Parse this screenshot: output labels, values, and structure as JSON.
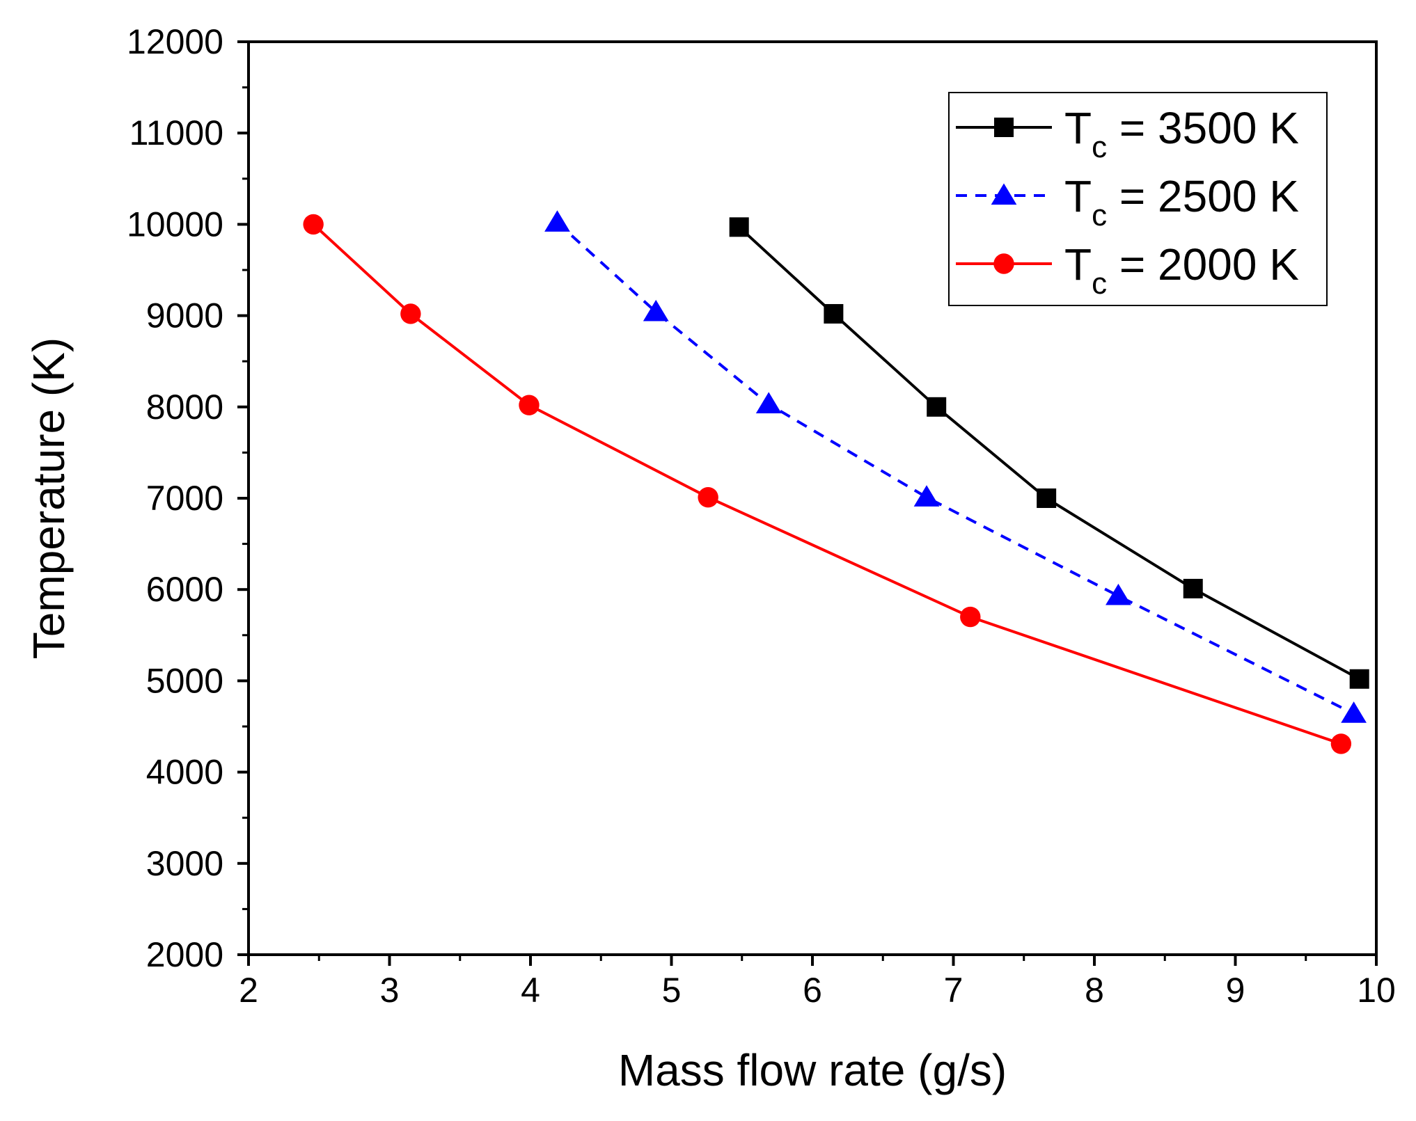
{
  "chart_data": {
    "type": "line",
    "title": "",
    "xlabel": "Mass flow rate (g/s)",
    "ylabel": "Temperature (K)",
    "xlim": [
      2,
      10
    ],
    "ylim": [
      2000,
      12000
    ],
    "x_ticks": [
      "2",
      "3",
      "4",
      "5",
      "6",
      "7",
      "8",
      "9",
      "10"
    ],
    "y_ticks": [
      "2000",
      "3000",
      "4000",
      "5000",
      "6000",
      "7000",
      "8000",
      "9000",
      "10000",
      "11000",
      "12000"
    ],
    "legend_position": "top-right",
    "series": [
      {
        "name": "Tc = 3500 K",
        "legend_main": "T",
        "legend_sub": "c",
        "legend_rest": " = 3500 K",
        "color": "#000000",
        "marker": "square",
        "line_style": "solid",
        "x": [
          5.48,
          6.15,
          6.88,
          7.66,
          8.7,
          9.88
        ],
        "y": [
          9970,
          9020,
          8000,
          7000,
          6010,
          5020
        ]
      },
      {
        "name": "Tc = 2500 K",
        "legend_main": "T",
        "legend_sub": "c",
        "legend_rest": " = 2500 K",
        "color": "#0000ff",
        "marker": "triangle",
        "line_style": "dashed",
        "x": [
          4.19,
          4.89,
          5.69,
          6.81,
          8.17,
          9.84
        ],
        "y": [
          10020,
          9040,
          8030,
          7010,
          5930,
          4640
        ]
      },
      {
        "name": "Tc = 2000 K",
        "legend_main": "T",
        "legend_sub": "c",
        "legend_rest": " = 2000 K",
        "color": "#ff0000",
        "marker": "circle",
        "line_style": "solid",
        "x": [
          2.46,
          3.15,
          3.99,
          5.26,
          7.12,
          9.75
        ],
        "y": [
          10000,
          9020,
          8020,
          7010,
          5700,
          4310
        ]
      }
    ]
  }
}
